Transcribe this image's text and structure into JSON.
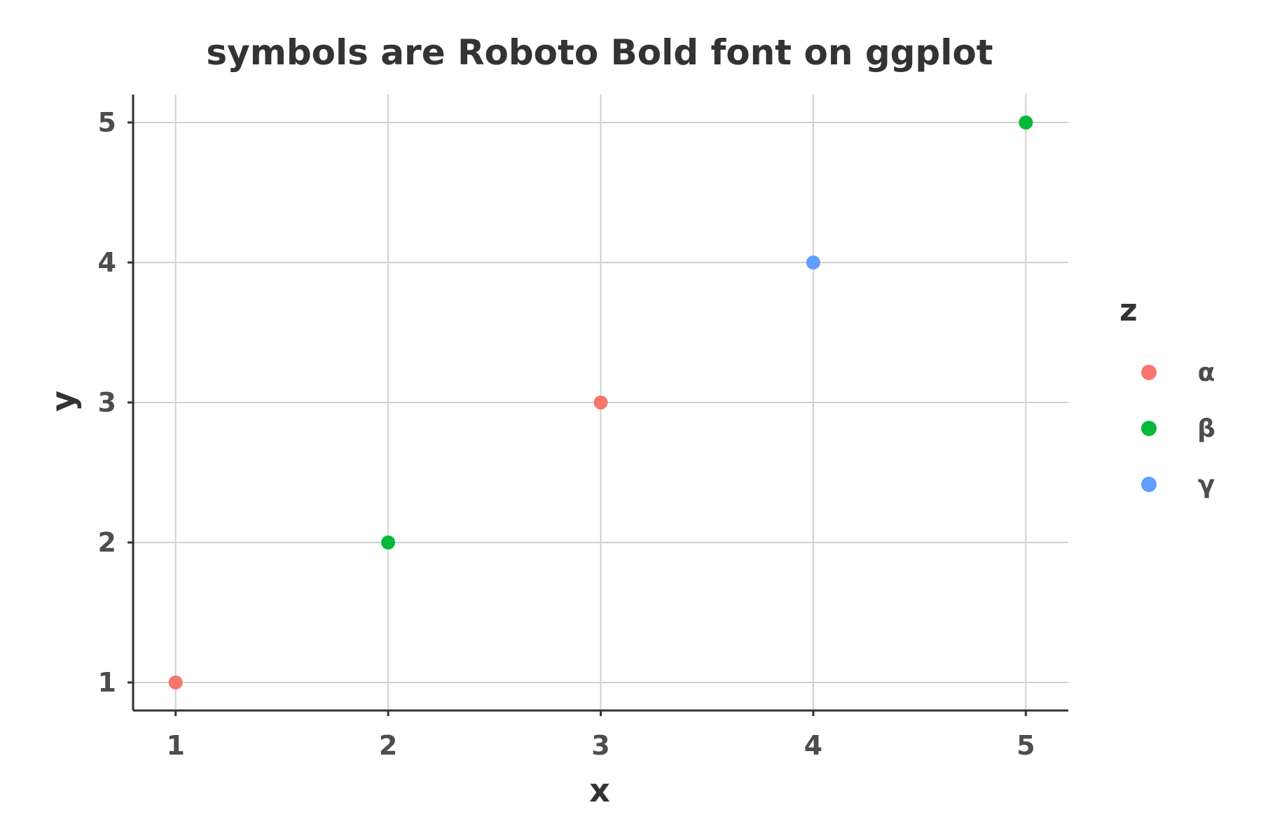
{
  "chart_data": {
    "type": "scatter",
    "title": "symbols are Roboto Bold font on ggplot",
    "xlabel": "x",
    "ylabel": "y",
    "xlim": [
      0.8,
      5.2
    ],
    "ylim": [
      0.8,
      5.2
    ],
    "xticks": [
      1,
      2,
      3,
      4,
      5
    ],
    "yticks": [
      1,
      2,
      3,
      4,
      5
    ],
    "grid": true,
    "legend": {
      "title": "z",
      "position": "right",
      "entries": [
        {
          "label": "α",
          "color": "#F8766D"
        },
        {
          "label": "β",
          "color": "#00BA38"
        },
        {
          "label": "γ",
          "color": "#619CFF"
        }
      ]
    },
    "points": [
      {
        "x": 1,
        "y": 1,
        "z": "α"
      },
      {
        "x": 2,
        "y": 2,
        "z": "β"
      },
      {
        "x": 3,
        "y": 3,
        "z": "α"
      },
      {
        "x": 4,
        "y": 4,
        "z": "γ"
      },
      {
        "x": 5,
        "y": 5,
        "z": "β"
      }
    ]
  }
}
